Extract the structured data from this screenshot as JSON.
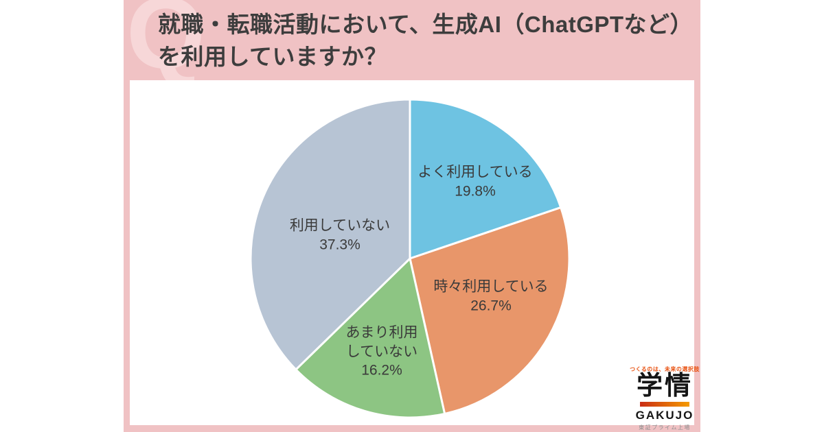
{
  "header": {
    "watermark": "Q",
    "title_line1": "就職・転職活動において、生成AI（ChatGPTなど）",
    "title_line2": "を利用していますか？"
  },
  "chart_data": {
    "type": "pie",
    "title": "就職・転職活動において、生成AI（ChatGPTなど）を利用していますか？",
    "start_angle": "12-oclock",
    "direction": "clockwise",
    "labels_position": "inside-slices",
    "legend": "none",
    "slices": [
      {
        "label": "よく利用している",
        "value": 19.8,
        "pct_label": "19.8%",
        "color": "#6ec3e2"
      },
      {
        "label": "時々利用している",
        "value": 26.7,
        "pct_label": "26.7%",
        "color": "#e8966a"
      },
      {
        "label": "あまり利用していない",
        "label_lines": [
          "あまり利用",
          "していない"
        ],
        "value": 16.2,
        "pct_label": "16.2%",
        "color": "#8dc583"
      },
      {
        "label": "利用していない",
        "value": 37.3,
        "pct_label": "37.3%",
        "color": "#b7c4d4"
      }
    ]
  },
  "logo": {
    "tagline": "つくるのは、未来の選択肢",
    "kanji": "学情",
    "roman": "GAKUJO",
    "listing": "東証プライム上場"
  },
  "colors": {
    "panel_pink": "#f0c2c4",
    "watermark_pink": "#f7d7d8",
    "title_text": "#3d3d3d",
    "label_text": "#3a3a3a",
    "slice_stroke": "#ffffff",
    "logo_red": "#e8500f",
    "logo_black": "#151515",
    "logo_gray": "#8f8f8f",
    "logo_bar_gradient_left": "#c92d15",
    "logo_bar_gradient_right": "#f59b00"
  }
}
